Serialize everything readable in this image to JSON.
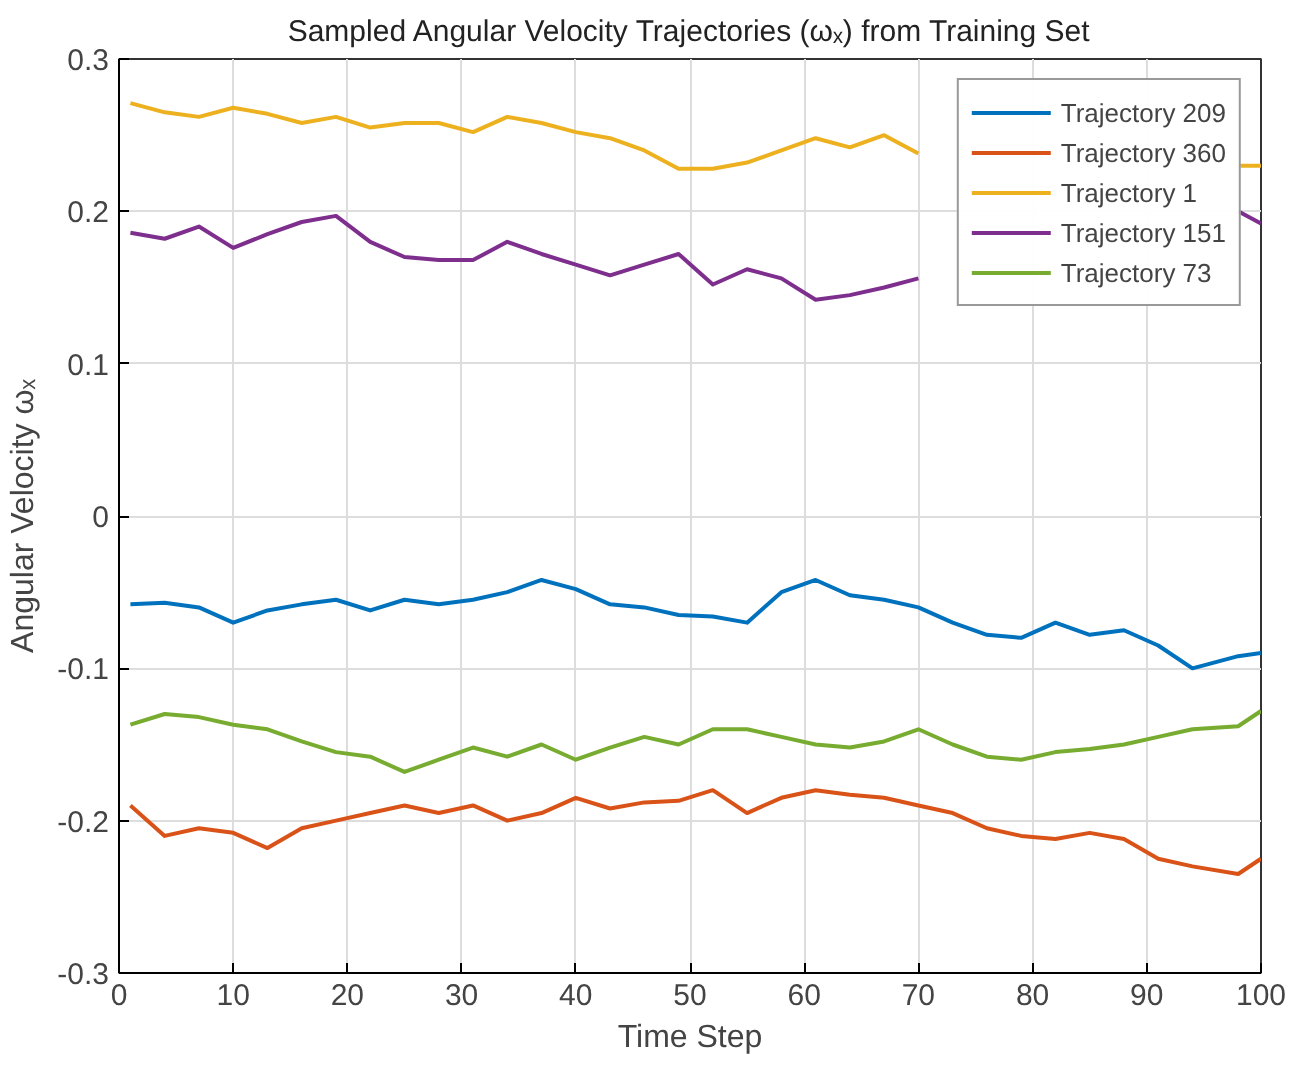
{
  "chart_data": {
    "type": "line",
    "title": "Sampled Angular Velocity Trajectories (ωₓ) from Training Set",
    "xlabel": "Time Step",
    "ylabel": "Angular Velocity ωₓ",
    "x": [
      1,
      4,
      7,
      10,
      13,
      16,
      19,
      22,
      25,
      28,
      31,
      34,
      37,
      40,
      43,
      46,
      49,
      52,
      55,
      58,
      61,
      64,
      67,
      70,
      73,
      76,
      79,
      82,
      85,
      88,
      91,
      94,
      98,
      100
    ],
    "series": [
      {
        "name": "Trajectory 209",
        "color": "#0072bd",
        "values": [
          -0.058,
          -0.057,
          -0.06,
          -0.07,
          -0.062,
          -0.058,
          -0.055,
          -0.062,
          -0.055,
          -0.058,
          -0.055,
          -0.05,
          -0.042,
          -0.048,
          -0.058,
          -0.06,
          -0.065,
          -0.066,
          -0.07,
          -0.05,
          -0.042,
          -0.052,
          -0.055,
          -0.06,
          -0.07,
          -0.078,
          -0.08,
          -0.07,
          -0.078,
          -0.075,
          -0.085,
          -0.1,
          -0.092,
          -0.09
        ]
      },
      {
        "name": "Trajectory 360",
        "color": "#d95319",
        "values": [
          -0.19,
          -0.21,
          -0.205,
          -0.208,
          -0.218,
          -0.205,
          -0.2,
          -0.195,
          -0.19,
          -0.195,
          -0.19,
          -0.2,
          -0.195,
          -0.185,
          -0.192,
          -0.188,
          -0.187,
          -0.18,
          -0.195,
          -0.185,
          -0.18,
          -0.183,
          -0.185,
          -0.19,
          -0.195,
          -0.205,
          -0.21,
          -0.212,
          -0.208,
          -0.212,
          -0.225,
          -0.23,
          -0.235,
          -0.225
        ]
      },
      {
        "name": "Trajectory 1",
        "color": "#edb120",
        "values": [
          0.271,
          0.265,
          0.262,
          0.268,
          0.264,
          0.258,
          0.262,
          0.255,
          0.258,
          0.258,
          0.252,
          0.262,
          0.258,
          0.252,
          0.248,
          0.24,
          0.228,
          0.228,
          0.232,
          0.24,
          0.248,
          0.242,
          0.25,
          0.238,
          null,
          null,
          null,
          null,
          null,
          null,
          null,
          null,
          0.23,
          0.23
        ]
      },
      {
        "name": "Trajectory 151",
        "color": "#7e2f8e",
        "values": [
          0.186,
          0.182,
          0.19,
          0.176,
          0.185,
          0.193,
          0.197,
          0.18,
          0.17,
          0.168,
          0.168,
          0.18,
          0.172,
          0.165,
          0.158,
          0.165,
          0.172,
          0.152,
          0.162,
          0.156,
          0.142,
          0.145,
          0.15,
          0.156,
          null,
          null,
          null,
          null,
          null,
          null,
          null,
          null,
          0.2,
          0.192
        ]
      },
      {
        "name": "Trajectory 73",
        "color": "#77ac30",
        "values": [
          -0.137,
          -0.13,
          -0.132,
          -0.137,
          -0.14,
          -0.148,
          -0.155,
          -0.158,
          -0.168,
          -0.16,
          -0.152,
          -0.158,
          -0.15,
          -0.16,
          -0.152,
          -0.145,
          -0.15,
          -0.14,
          -0.14,
          -0.145,
          -0.15,
          -0.152,
          -0.148,
          -0.14,
          -0.15,
          -0.158,
          -0.16,
          -0.155,
          -0.153,
          -0.15,
          -0.145,
          -0.14,
          -0.138,
          -0.128
        ]
      }
    ],
    "xlim": [
      0,
      100
    ],
    "ylim": [
      -0.3,
      0.3
    ],
    "xticks": [
      0,
      10,
      20,
      30,
      40,
      50,
      60,
      70,
      80,
      90,
      100
    ],
    "yticks": [
      -0.3,
      -0.2,
      -0.1,
      0,
      0.1,
      0.2,
      0.3
    ],
    "grid": true,
    "legend": "top right",
    "line_style": "solid"
  }
}
